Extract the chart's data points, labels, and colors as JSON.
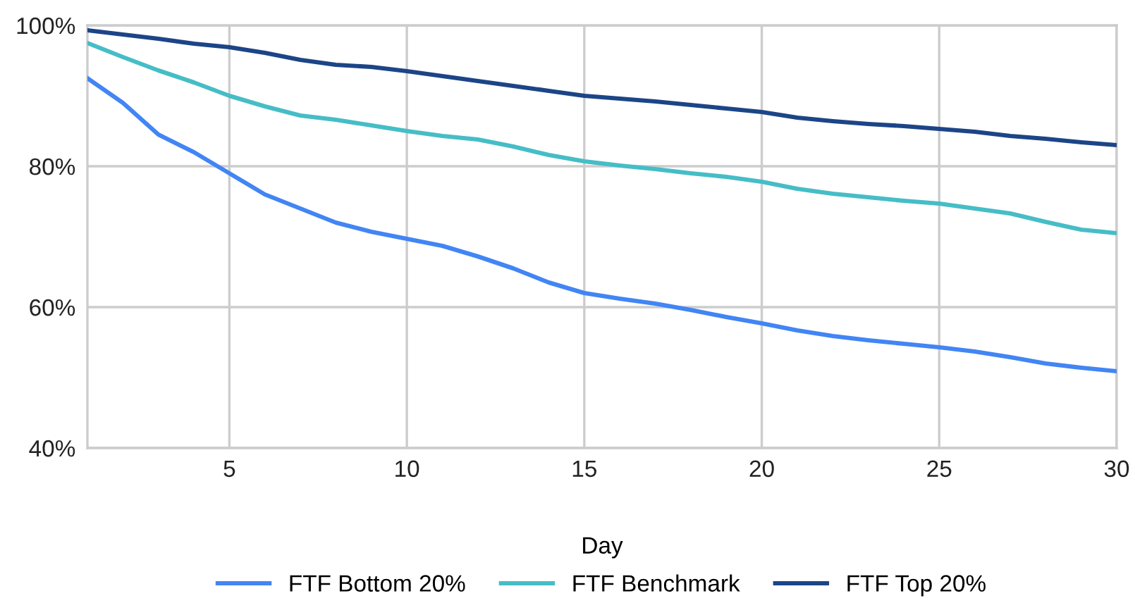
{
  "chart_data": {
    "type": "line",
    "xlabel": "Day",
    "x": [
      1,
      2,
      3,
      4,
      5,
      6,
      7,
      8,
      9,
      10,
      11,
      12,
      13,
      14,
      15,
      16,
      17,
      18,
      19,
      20,
      21,
      22,
      23,
      24,
      25,
      26,
      27,
      28,
      29,
      30
    ],
    "series": [
      {
        "name": "FTF Bottom 20%",
        "color": "#4285f4",
        "values": [
          92.5,
          89,
          84.5,
          82,
          79,
          76,
          74,
          72,
          70.7,
          69.7,
          68.7,
          67.2,
          65.5,
          63.5,
          62,
          61.2,
          60.5,
          59.6,
          58.6,
          57.7,
          56.7,
          55.9,
          55.3,
          54.8,
          54.3,
          53.7,
          52.9,
          52,
          51.4,
          50.9
        ]
      },
      {
        "name": "FTF Benchmark",
        "color": "#46bdc6",
        "values": [
          97.5,
          95.5,
          93.6,
          91.9,
          90,
          88.5,
          87.2,
          86.6,
          85.8,
          85,
          84.3,
          83.8,
          82.8,
          81.6,
          80.7,
          80.1,
          79.6,
          79,
          78.5,
          77.8,
          76.8,
          76.1,
          75.6,
          75.1,
          74.7,
          74,
          73.3,
          72.1,
          71,
          70.5
        ]
      },
      {
        "name": "FTF Top 20%",
        "color": "#1c4587",
        "values": [
          99.3,
          98.7,
          98.1,
          97.4,
          96.9,
          96.1,
          95.1,
          94.4,
          94.1,
          93.5,
          92.8,
          92.1,
          91.4,
          90.7,
          90,
          89.6,
          89.2,
          88.7,
          88.2,
          87.7,
          86.9,
          86.4,
          86,
          85.7,
          85.3,
          84.9,
          84.3,
          83.9,
          83.4,
          83.0
        ]
      }
    ],
    "xlim": [
      1,
      30
    ],
    "xticks": [
      5,
      10,
      15,
      20,
      25,
      30
    ],
    "ylim": [
      40,
      100
    ],
    "yticks": [
      {
        "value": 40,
        "label": "40%"
      },
      {
        "value": 60,
        "label": "60%"
      },
      {
        "value": 80,
        "label": "80%"
      },
      {
        "value": 100,
        "label": "100%"
      }
    ],
    "grid": true,
    "legend": "bottom",
    "marker": "none",
    "line_style": "solid"
  }
}
